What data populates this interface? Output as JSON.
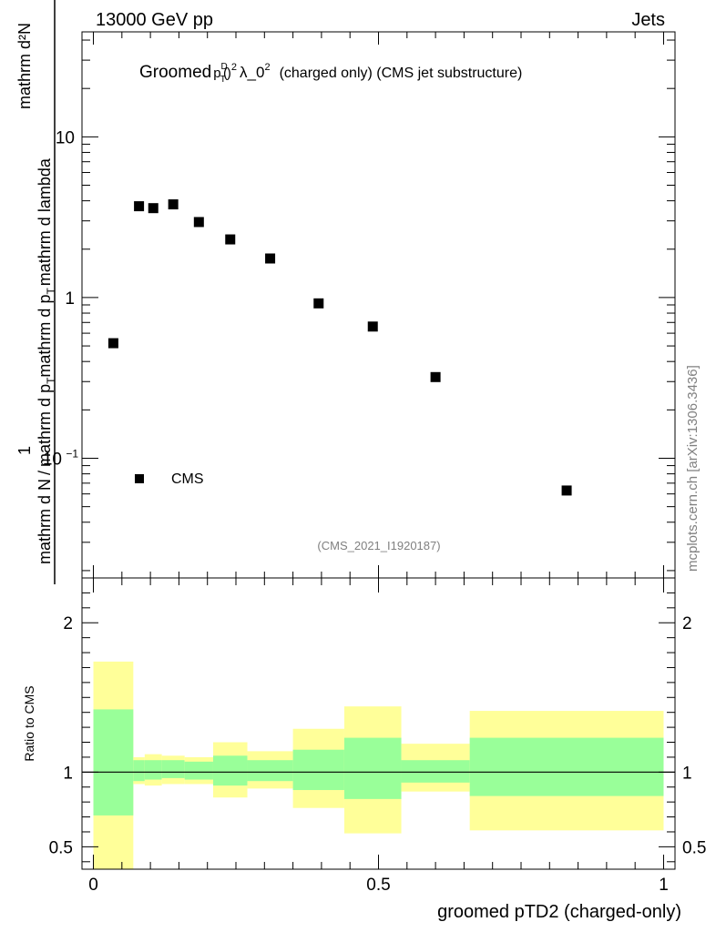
{
  "header": {
    "energy_label": "13000 GeV pp",
    "category_label": "Jets",
    "watermark": "mcplots.cern.ch [arXiv:1306.3436]"
  },
  "chart_data": [
    {
      "type": "scatter",
      "title_prefix": "Groomed",
      "title_math": {
        "base": "p",
        "sub": "T",
        "sup": "D",
        "exp": "2",
        "suffix": "λ_0",
        "suffix_exp": "2"
      },
      "title_rest": "(charged only) (CMS jet substructure)",
      "analysis_tag": "(CMS_2021_I1920187)",
      "ylabel": {
        "numerator": "1",
        "denominator_part1": "mathrm d N",
        "denominator_part2": "mathrm d p",
        "denominator_sub": "T",
        "numerator2": "mathrm d²N",
        "denominator2_part1": "mathrm d p",
        "denominator2_sub": "T",
        "denominator2_part2": "mathrm d lambda"
      },
      "y_scale": "log",
      "ylim": [
        0.018,
        45
      ],
      "xlim": [
        -0.02,
        1.02
      ],
      "y_ticks": [
        {
          "value": 10,
          "label": "10"
        },
        {
          "value": 1,
          "label": "1"
        },
        {
          "value": 0.1,
          "label": "10",
          "exp": "−1"
        }
      ],
      "legend": {
        "position": "bottom-left",
        "entries": [
          "CMS"
        ]
      },
      "series": [
        {
          "name": "CMS",
          "marker": "square",
          "x": [
            0.035,
            0.08,
            0.105,
            0.14,
            0.185,
            0.24,
            0.31,
            0.395,
            0.49,
            0.6,
            0.83
          ],
          "y": [
            0.52,
            3.7,
            3.6,
            3.8,
            2.95,
            2.3,
            1.75,
            0.92,
            0.66,
            0.32,
            0.063
          ]
        }
      ]
    },
    {
      "type": "area",
      "ylabel": "Ratio to CMS",
      "xlabel": "groomed pTD2 (charged-only)",
      "ylim": [
        0.35,
        2.3
      ],
      "xlim": [
        -0.02,
        1.02
      ],
      "x_ticks": [
        {
          "value": 0,
          "label": "0"
        },
        {
          "value": 0.5,
          "label": "0.5"
        },
        {
          "value": 1,
          "label": "1"
        }
      ],
      "y_ticks": [
        {
          "value": 2,
          "label": "2"
        },
        {
          "value": 1,
          "label": "1"
        },
        {
          "value": 0.5,
          "label": "0.5"
        }
      ],
      "reference_line": 1,
      "bins": [
        {
          "x_lo": 0.0,
          "x_hi": 0.07,
          "inner": [
            0.71,
            1.42
          ],
          "outer": [
            0.3,
            1.74
          ]
        },
        {
          "x_lo": 0.07,
          "x_hi": 0.09,
          "inner": [
            0.94,
            1.08
          ],
          "outer": [
            0.92,
            1.1
          ]
        },
        {
          "x_lo": 0.09,
          "x_hi": 0.12,
          "inner": [
            0.95,
            1.08
          ],
          "outer": [
            0.91,
            1.12
          ]
        },
        {
          "x_lo": 0.12,
          "x_hi": 0.16,
          "inner": [
            0.96,
            1.08
          ],
          "outer": [
            0.92,
            1.11
          ]
        },
        {
          "x_lo": 0.16,
          "x_hi": 0.21,
          "inner": [
            0.95,
            1.07
          ],
          "outer": [
            0.92,
            1.1
          ]
        },
        {
          "x_lo": 0.21,
          "x_hi": 0.27,
          "inner": [
            0.91,
            1.11
          ],
          "outer": [
            0.83,
            1.2
          ]
        },
        {
          "x_lo": 0.27,
          "x_hi": 0.35,
          "inner": [
            0.94,
            1.08
          ],
          "outer": [
            0.89,
            1.14
          ]
        },
        {
          "x_lo": 0.35,
          "x_hi": 0.44,
          "inner": [
            0.88,
            1.15
          ],
          "outer": [
            0.76,
            1.29
          ]
        },
        {
          "x_lo": 0.44,
          "x_hi": 0.54,
          "inner": [
            0.82,
            1.23
          ],
          "outer": [
            0.59,
            1.44
          ]
        },
        {
          "x_lo": 0.54,
          "x_hi": 0.66,
          "inner": [
            0.93,
            1.08
          ],
          "outer": [
            0.87,
            1.19
          ]
        },
        {
          "x_lo": 0.66,
          "x_hi": 1.0,
          "inner": [
            0.84,
            1.23
          ],
          "outer": [
            0.61,
            1.41
          ]
        }
      ],
      "colors": {
        "inner": "#99ff99",
        "outer": "#ffff99",
        "line": "#000000"
      }
    }
  ]
}
